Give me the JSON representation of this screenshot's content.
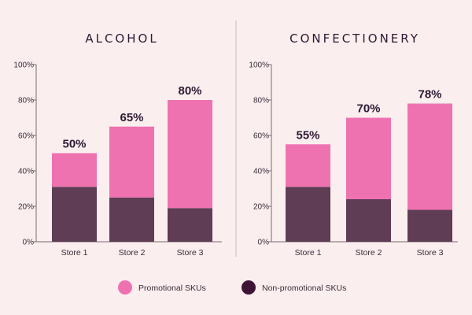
{
  "colors": {
    "promotional": "#ee72b0",
    "non_promotional": "#5e3d55",
    "background": "#fbeeee",
    "axis": "#7a6a72",
    "divider": "#c9b9bd",
    "legend_non_promotional": "#3d1436"
  },
  "legend": {
    "promotional": "Promotional SKUs",
    "non_promotional": "Non-promotional SKUs"
  },
  "chart_data": [
    {
      "type": "bar",
      "stacked": true,
      "title": "ALCOHOL",
      "categories": [
        "Store 1",
        "Store 2",
        "Store 3"
      ],
      "series": [
        {
          "name": "Non-promotional SKUs",
          "values": [
            31,
            25,
            19
          ]
        },
        {
          "name": "Promotional SKUs",
          "values": [
            19,
            40,
            61
          ]
        }
      ],
      "totals": [
        50,
        65,
        80
      ],
      "total_labels": [
        "50%",
        "65%",
        "80%"
      ],
      "ylim": [
        0,
        100
      ],
      "yticks": [
        "0%",
        "20%",
        "40%",
        "60%",
        "80%",
        "100%"
      ],
      "legend_position": "bottom"
    },
    {
      "type": "bar",
      "stacked": true,
      "title": "CONFECTIONERY",
      "categories": [
        "Store 1",
        "Store 2",
        "Store 3"
      ],
      "series": [
        {
          "name": "Non-promotional SKUs",
          "values": [
            31,
            24,
            18
          ]
        },
        {
          "name": "Promotional SKUs",
          "values": [
            24,
            46,
            60
          ]
        }
      ],
      "totals": [
        55,
        70,
        78
      ],
      "total_labels": [
        "55%",
        "70%",
        "78%"
      ],
      "ylim": [
        0,
        100
      ],
      "yticks": [
        "0%",
        "20%",
        "40%",
        "60%",
        "80%",
        "100%"
      ],
      "legend_position": "bottom"
    }
  ]
}
